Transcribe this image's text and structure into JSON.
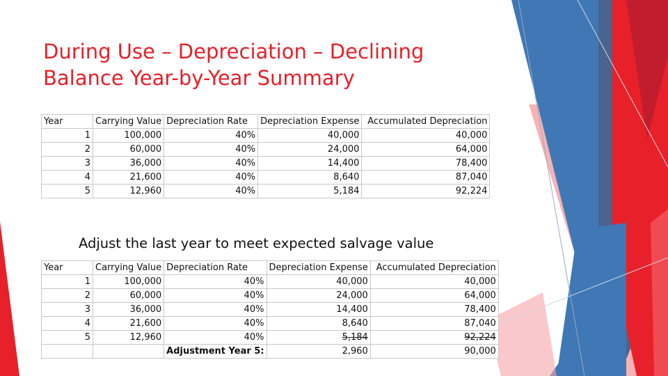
{
  "slide": {
    "title_line1": "During Use – Depreciation – Declining",
    "title_line2": "Balance Year-by-Year Summary",
    "note": "Adjust the last year to meet expected salvage value"
  },
  "headers": [
    "Year",
    "Carrying Value",
    "Depreciation Rate",
    "Depreciation Expense",
    "Accumulated Depreciation"
  ],
  "table1": {
    "rows": [
      [
        "1",
        "100,000",
        "40%",
        "40,000",
        "40,000"
      ],
      [
        "2",
        "60,000",
        "40%",
        "24,000",
        "64,000"
      ],
      [
        "3",
        "36,000",
        "40%",
        "14,400",
        "78,400"
      ],
      [
        "4",
        "21,600",
        "40%",
        "8,640",
        "87,040"
      ],
      [
        "5",
        "12,960",
        "40%",
        "5,184",
        "92,224"
      ]
    ]
  },
  "table2": {
    "rows": [
      [
        "1",
        "100,000",
        "40%",
        "40,000",
        "40,000"
      ],
      [
        "2",
        "60,000",
        "40%",
        "24,000",
        "64,000"
      ],
      [
        "3",
        "36,000",
        "40%",
        "14,400",
        "78,400"
      ],
      [
        "4",
        "21,600",
        "40%",
        "8,640",
        "87,040"
      ],
      [
        "5",
        "12,960",
        "40%",
        "5,184",
        "92,224"
      ]
    ],
    "adjustment_label": "Adjustment Year 5:",
    "adjustment_expense": "2,960",
    "adjustment_accumulated": "90,000"
  },
  "colors": {
    "title": "#e8202a",
    "red": "#e8202a",
    "pink": "#f6a4a8",
    "blue": "#3f78b5",
    "slate": "#4a6490"
  }
}
